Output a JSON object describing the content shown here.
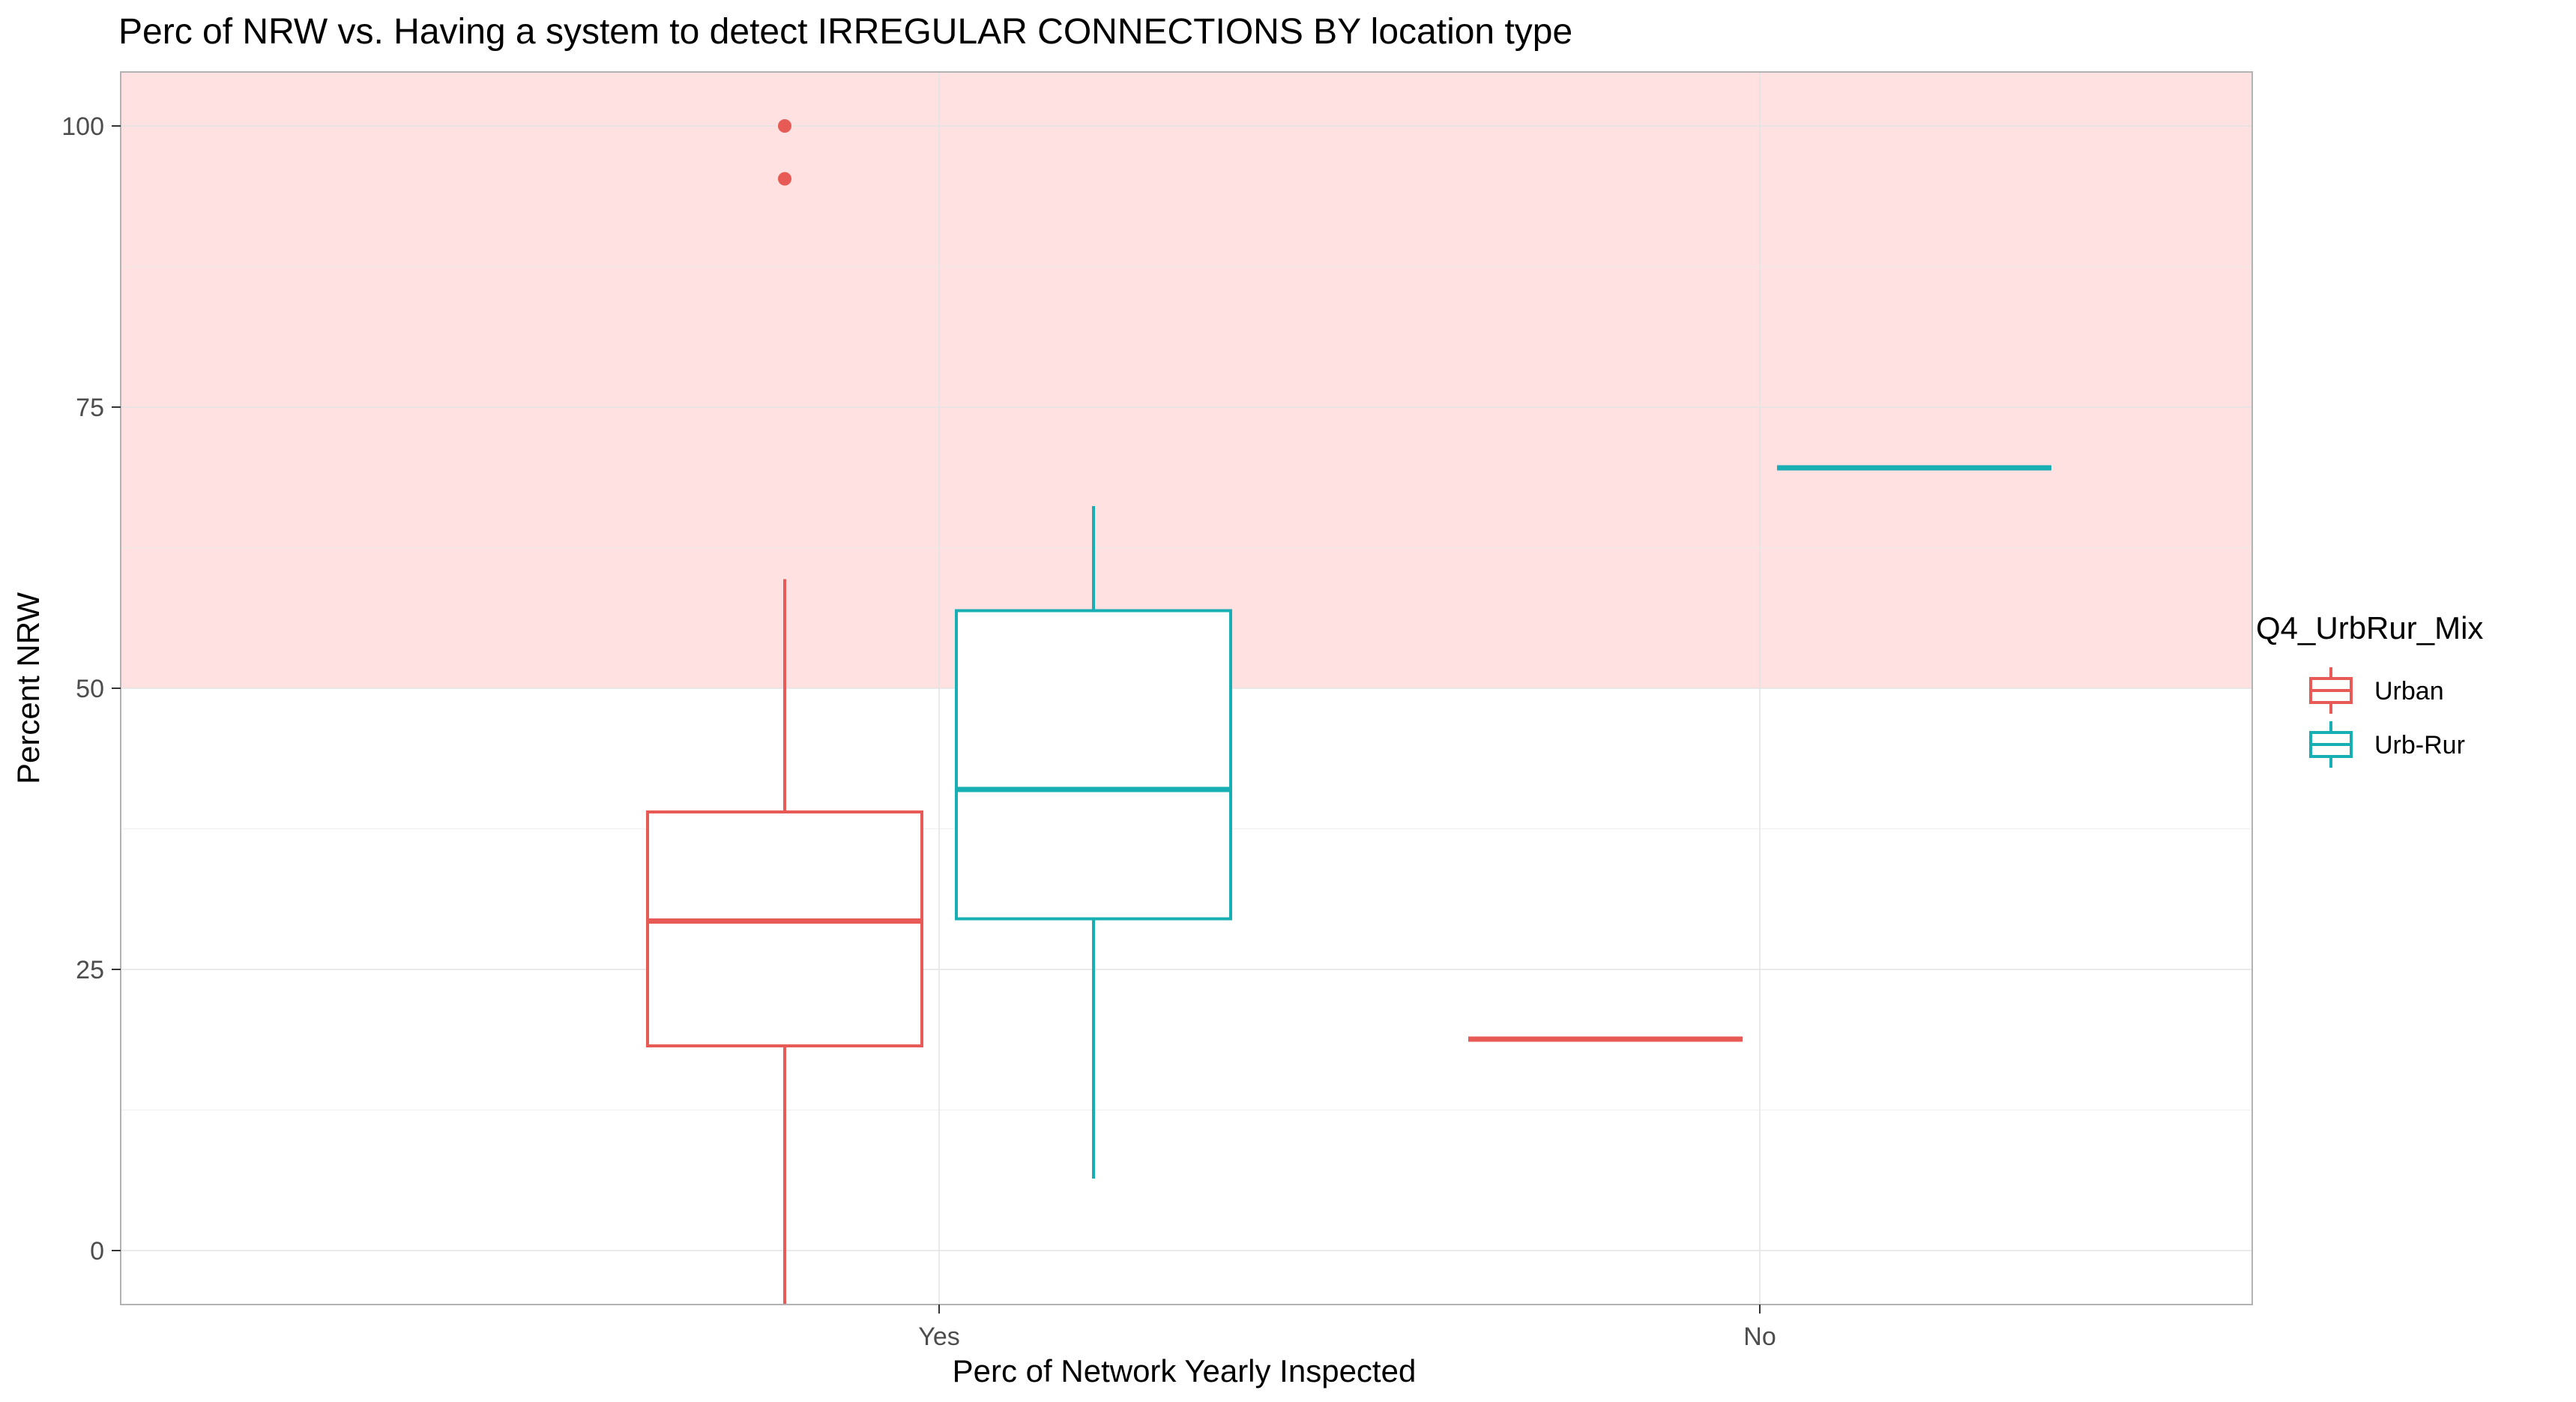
{
  "chart_data": {
    "type": "boxplot",
    "title": "Perc of NRW vs. Having a system to detect IRREGULAR CONNECTIONS BY location type",
    "xlabel": "Perc of Network Yearly Inspected",
    "ylabel": "Percent NRW",
    "categories": [
      "Yes",
      "No"
    ],
    "ylim": [
      -4.8,
      104.8
    ],
    "yticks": [
      0,
      25,
      50,
      75,
      100
    ],
    "ytick_labels": [
      "0",
      "25",
      "50",
      "75",
      "100"
    ],
    "grid": true,
    "shaded_band": {
      "from": 50,
      "to": 104.8,
      "color": "#FFE1E2"
    },
    "legend": {
      "title": "Q4_UrbRur_Mix",
      "placement": "right",
      "entries": [
        "Urban",
        "Urb-Rur"
      ]
    },
    "series": [
      {
        "name": "Urban",
        "color": "#E85A55",
        "boxes": [
          {
            "category": "Yes",
            "whisker_low": -4.8,
            "q1": 18.2,
            "median": 29.3,
            "q3": 39,
            "whisker_high": 59.7,
            "outliers": [
              95.3,
              100
            ]
          },
          {
            "category": "No",
            "whisker_low": 18.8,
            "q1": 18.8,
            "median": 18.8,
            "q3": 18.8,
            "whisker_high": 18.8,
            "outliers": []
          }
        ]
      },
      {
        "name": "Urb-Rur",
        "color": "#18AFB4",
        "boxes": [
          {
            "category": "Yes",
            "whisker_low": 6.4,
            "q1": 29.5,
            "median": 41,
            "q3": 56.9,
            "whisker_high": 66.2,
            "outliers": []
          },
          {
            "category": "No",
            "whisker_low": 69.6,
            "q1": 69.6,
            "median": 69.6,
            "q3": 69.6,
            "whisker_high": 69.6,
            "outliers": []
          }
        ]
      }
    ]
  }
}
